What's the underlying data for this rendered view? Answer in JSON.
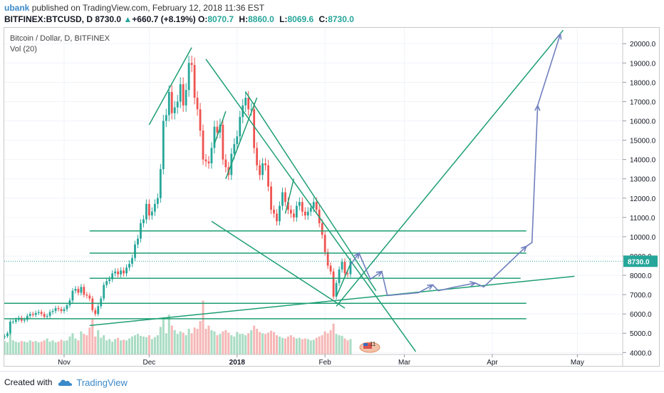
{
  "header": {
    "author": "ubank",
    "published_text": "published on TradingView.com, February 12, 2018 11:36 EST"
  },
  "ohlc": {
    "symbol": "BITFINEX:BTCUSD, D",
    "last": "8730.0",
    "change": "+660.7 (+8.19%)",
    "o_label": "O:",
    "o": "8070.7",
    "h_label": "H:",
    "h": "8860.0",
    "l_label": "L:",
    "l": "8069.6",
    "c_label": "C:",
    "c": "8730.0"
  },
  "legend": {
    "title": "Bitcoin / Dollar, D, BITFINEX",
    "volume": "Vol (20)"
  },
  "footer": {
    "created_with": "Created with",
    "brand": "TradingView"
  },
  "colors": {
    "up": "#26a69a",
    "down": "#ef5350",
    "trend": "#1e9e73",
    "projection": "#6f7fbe",
    "price_tag": "#26a69a"
  },
  "chart_data": {
    "type": "candlestick",
    "ylim": [
      3900,
      20600
    ],
    "y_ticks": [
      {
        "value": 20000,
        "label": "20000.0"
      },
      {
        "value": 19000,
        "label": "19000.0"
      },
      {
        "value": 18000,
        "label": "18000.0"
      },
      {
        "value": 17000,
        "label": "17000.0"
      },
      {
        "value": 16000,
        "label": "16000.0"
      },
      {
        "value": 15000,
        "label": "15000.0"
      },
      {
        "value": 14000,
        "label": "14000.0"
      },
      {
        "value": 13000,
        "label": "13000.0"
      },
      {
        "value": 12000,
        "label": "12000.0"
      },
      {
        "value": 11000,
        "label": "11000.0"
      },
      {
        "value": 10000,
        "label": "10000.0"
      },
      {
        "value": 9000,
        "label": "9000.0"
      },
      {
        "value": 8000,
        "label": "8000.0"
      },
      {
        "value": 7000,
        "label": "7000.0"
      },
      {
        "value": 6000,
        "label": "6000.0"
      },
      {
        "value": 5000,
        "label": "5000.0"
      },
      {
        "value": 4000,
        "label": "4000.0"
      }
    ],
    "x_ticks": [
      {
        "date": "2017-11-01",
        "label": "Nov"
      },
      {
        "date": "2017-12-01",
        "label": "Dec"
      },
      {
        "date": "2018-01-01",
        "label": "2018"
      },
      {
        "date": "2018-02-01",
        "label": "Feb"
      },
      {
        "date": "2018-03-01",
        "label": "Mar"
      },
      {
        "date": "2018-04-01",
        "label": "Apr"
      },
      {
        "date": "2018-05-01",
        "label": "May"
      }
    ],
    "last_price": {
      "value": 8730,
      "label": "8730.0"
    },
    "candles_start": "2017-10-05",
    "close": [
      4300,
      4400,
      4550,
      4650,
      4700,
      4800,
      4850,
      5000,
      5600,
      5600,
      5700,
      5800,
      5650,
      5700,
      5900,
      6000,
      5950,
      6050,
      6100,
      6000,
      5850,
      5900,
      6100,
      6150,
      6300,
      6250,
      6150,
      6250,
      6450,
      6700,
      7200,
      7300,
      7100,
      7400,
      7000,
      6950,
      6800,
      6200,
      6000,
      6400,
      6800,
      7500,
      7700,
      7800,
      8100,
      8200,
      8050,
      8250,
      8100,
      8400,
      8600,
      8900,
      9600,
      9900,
      10700,
      10900,
      11700,
      11100,
      11300,
      11700,
      12000,
      13500,
      16000,
      16300,
      17500,
      16400,
      16700,
      17000,
      17900,
      16800,
      17600,
      19000,
      18900,
      17200,
      16600,
      15500,
      14000,
      13900,
      13800,
      14600,
      15700,
      15400,
      15800,
      14000,
      13600,
      13200,
      14300,
      14800,
      15200,
      16200,
      16800,
      17200,
      16600,
      16600,
      14600,
      13700,
      13200,
      13800,
      13700,
      12600,
      11400,
      11200,
      10800,
      11600,
      12300,
      11800,
      11400,
      11200,
      11000,
      11600,
      11800,
      11300,
      11100,
      11300,
      11500,
      11800,
      11400,
      10700,
      10100,
      9200,
      8500,
      8200,
      6900,
      7600,
      8300,
      8700,
      8100,
      8060,
      8730
    ],
    "volume_max": 1.0,
    "volume": [
      0.22,
      0.2,
      0.25,
      0.18,
      0.22,
      0.2,
      0.21,
      0.19,
      0.33,
      0.22,
      0.2,
      0.19,
      0.21,
      0.2,
      0.19,
      0.22,
      0.2,
      0.21,
      0.19,
      0.2,
      0.22,
      0.25,
      0.2,
      0.22,
      0.19,
      0.2,
      0.23,
      0.21,
      0.22,
      0.28,
      0.33,
      0.25,
      0.22,
      0.36,
      0.32,
      0.3,
      0.42,
      0.55,
      0.28,
      0.38,
      0.26,
      0.3,
      0.22,
      0.24,
      0.2,
      0.24,
      0.26,
      0.22,
      0.23,
      0.22,
      0.25,
      0.28,
      0.3,
      0.32,
      0.29,
      0.28,
      0.27,
      0.3,
      0.24,
      0.27,
      0.3,
      0.43,
      0.58,
      0.33,
      0.62,
      0.45,
      0.38,
      0.32,
      0.36,
      0.34,
      0.3,
      0.4,
      0.33,
      0.42,
      0.4,
      0.52,
      0.84,
      0.4,
      0.45,
      0.38,
      0.36,
      0.3,
      0.32,
      0.36,
      0.38,
      0.34,
      0.3,
      0.28,
      0.35,
      0.32,
      0.32,
      0.3,
      0.33,
      0.38,
      0.45,
      0.4,
      0.35,
      0.33,
      0.32,
      0.34,
      0.37,
      0.35,
      0.3,
      0.28,
      0.26,
      0.25,
      0.28,
      0.3,
      0.27,
      0.25,
      0.26,
      0.24,
      0.25,
      0.24,
      0.22,
      0.23,
      0.26,
      0.28,
      0.3,
      0.36,
      0.33,
      0.38,
      0.48,
      0.32,
      0.3,
      0.29,
      0.25,
      0.22,
      0.24
    ],
    "trend_lines": [
      {
        "x1": "2017-12-01",
        "y1": 15800,
        "x2": "2017-12-16",
        "y2": 19800
      },
      {
        "x1": "2017-12-21",
        "y1": 19200,
        "x2": "2018-03-05",
        "y2": 4050
      },
      {
        "x1": "2017-12-23",
        "y1": 10800,
        "x2": "2018-02-08",
        "y2": 6300
      },
      {
        "x1": "2018-01-04",
        "y1": 17500,
        "x2": "2018-02-19",
        "y2": 7200
      },
      {
        "x1": "2017-12-24",
        "y1": 14800,
        "x2": "2017-12-28",
        "y2": 16500
      },
      {
        "x1": "2017-12-28",
        "y1": 13000,
        "x2": "2018-01-08",
        "y2": 17200
      },
      {
        "x1": "2018-01-18",
        "y1": 11200,
        "x2": "2018-01-21",
        "y2": 13000
      },
      {
        "x1": "2018-02-05",
        "y1": 6900,
        "x2": "2018-02-10",
        "y2": 8600
      },
      {
        "x1": "2017-11-10",
        "y1": 5400,
        "x2": "2018-04-30",
        "y2": 7950
      },
      {
        "x1": "2018-02-05",
        "y1": 6400,
        "x2": "2018-04-26",
        "y2": 20700
      }
    ],
    "horizontal_lines": [
      {
        "x1": "2017-11-10",
        "x2": "2018-04-13",
        "y": 10300
      },
      {
        "x1": "2017-11-10",
        "x2": "2018-04-13",
        "y": 9150
      },
      {
        "x1": "2017-11-10",
        "x2": "2018-04-11",
        "y": 7850
      },
      {
        "x1": "2017-10-09",
        "x2": "2018-04-13",
        "y": 6550
      },
      {
        "x1": "2017-10-03",
        "x2": "2018-04-13",
        "y": 5750
      }
    ],
    "projection_path": [
      {
        "x": "2018-02-10",
        "y": 8550
      },
      {
        "x": "2018-02-13",
        "y": 9150
      },
      {
        "x": "2018-02-17",
        "y": 7800
      },
      {
        "x": "2018-02-21",
        "y": 8200
      },
      {
        "x": "2018-02-23",
        "y": 6950
      },
      {
        "x": "2018-03-06",
        "y": 7100
      },
      {
        "x": "2018-03-11",
        "y": 7500
      },
      {
        "x": "2018-03-13",
        "y": 7200
      },
      {
        "x": "2018-03-19",
        "y": 7400
      },
      {
        "x": "2018-03-26",
        "y": 7600
      },
      {
        "x": "2018-03-29",
        "y": 7400
      },
      {
        "x": "2018-04-13",
        "y": 9500
      },
      {
        "x": "2018-04-15",
        "y": 9700
      },
      {
        "x": "2018-04-17",
        "y": 16800
      },
      {
        "x": "2018-04-25",
        "y": 20500
      }
    ]
  }
}
